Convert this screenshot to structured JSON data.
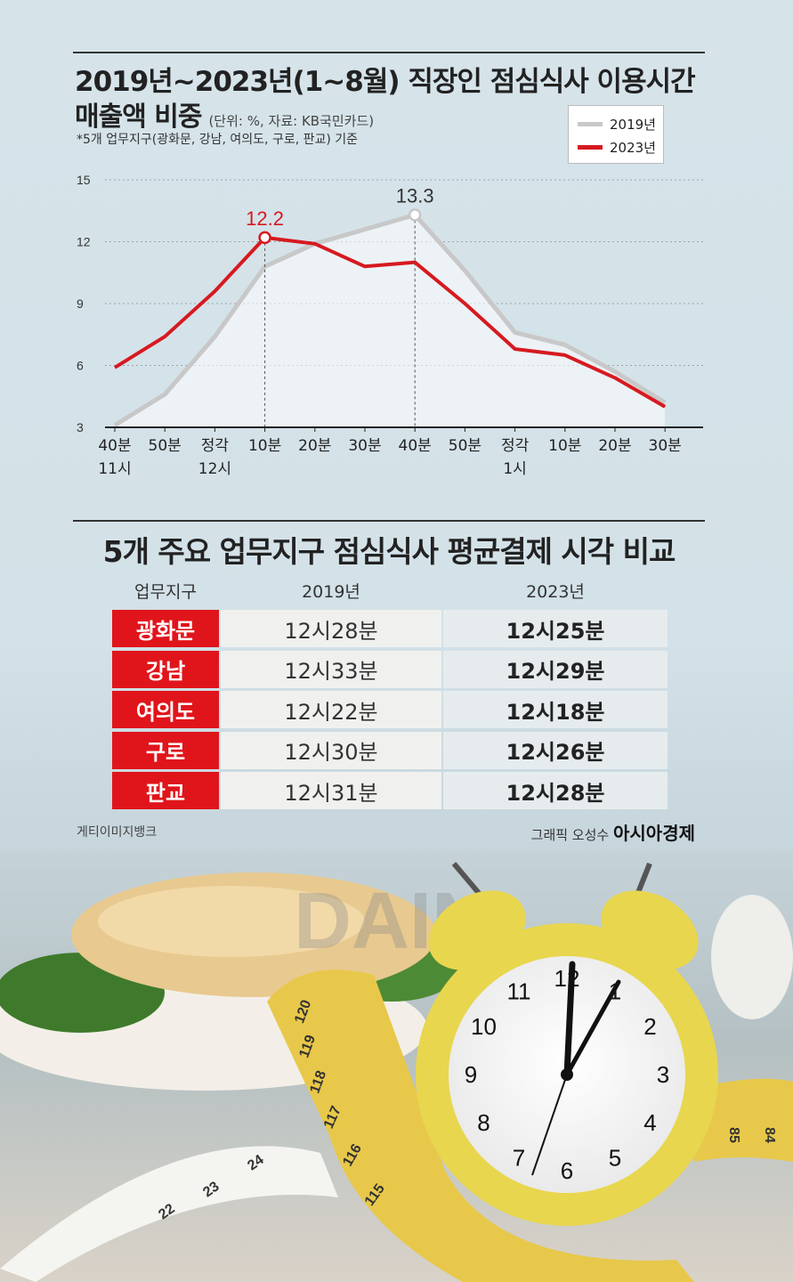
{
  "header": {
    "title_line1": "2019년~2023년(1~8월) 직장인 점심식사 이용시간",
    "title_line2": "매출액 비중",
    "unit_source": "(단위: %, 자료: KB국민카드)",
    "note": "*5개 업무지구(광화문, 강남, 여의도, 구로, 판교) 기준"
  },
  "chart_data": {
    "type": "line",
    "title": "2019년~2023년(1~8월) 직장인 점심식사 이용시간 매출액 비중",
    "ylim": [
      3,
      15
    ],
    "yticks": [
      "15",
      "12",
      "9",
      "6",
      "3"
    ],
    "ytick_values": [
      15,
      12,
      9,
      6,
      3
    ],
    "categories": [
      [
        "40분",
        "11시"
      ],
      [
        "50분",
        ""
      ],
      [
        "정각",
        "12시"
      ],
      [
        "10분",
        ""
      ],
      [
        "20분",
        ""
      ],
      [
        "30분",
        ""
      ],
      [
        "40분",
        ""
      ],
      [
        "50분",
        ""
      ],
      [
        "정각",
        "1시"
      ],
      [
        "10분",
        ""
      ],
      [
        "20분",
        ""
      ],
      [
        "30분",
        ""
      ]
    ],
    "series": [
      {
        "name": "2019년",
        "color": "#c8c8c8",
        "values": [
          3.1,
          4.6,
          7.4,
          10.8,
          11.9,
          12.6,
          13.3,
          10.6,
          7.6,
          7.0,
          5.7,
          4.2
        ]
      },
      {
        "name": "2023년",
        "color": "#d71920",
        "values": [
          5.9,
          7.4,
          9.6,
          12.2,
          11.9,
          10.8,
          11.0,
          9.0,
          6.8,
          6.5,
          5.4,
          4.0
        ]
      }
    ],
    "annotations": [
      {
        "series": 1,
        "index": 3,
        "label": "12.2"
      },
      {
        "series": 0,
        "index": 6,
        "label": "13.3"
      }
    ],
    "grid": true,
    "legend": "top-right"
  },
  "table": {
    "title": "5개 주요 업무지구 점심식사 평균결제 시각 비교",
    "headers": [
      "업무지구",
      "2019년",
      "2023년"
    ],
    "rows": [
      {
        "district": "광화문",
        "y2019": "12시28분",
        "y2023": "12시25분"
      },
      {
        "district": "강남",
        "y2019": "12시33분",
        "y2023": "12시29분"
      },
      {
        "district": "여의도",
        "y2019": "12시22분",
        "y2023": "12시18분"
      },
      {
        "district": "구로",
        "y2019": "12시30분",
        "y2023": "12시26분"
      },
      {
        "district": "판교",
        "y2019": "12시31분",
        "y2023": "12시28분"
      }
    ]
  },
  "credits": {
    "left": "게티이미지뱅크",
    "right_prefix": "그래픽 오성수",
    "right_brand": "아시아경제"
  },
  "photo": {
    "watermark": "DAIN",
    "clock_numbers": [
      "12",
      "1",
      "2",
      "3",
      "4",
      "5",
      "6",
      "7",
      "8",
      "9",
      "10",
      "11"
    ],
    "tape_numbers": [
      "120",
      "119",
      "118",
      "117",
      "116",
      "115",
      "24",
      "23",
      "22",
      "85",
      "84"
    ]
  }
}
